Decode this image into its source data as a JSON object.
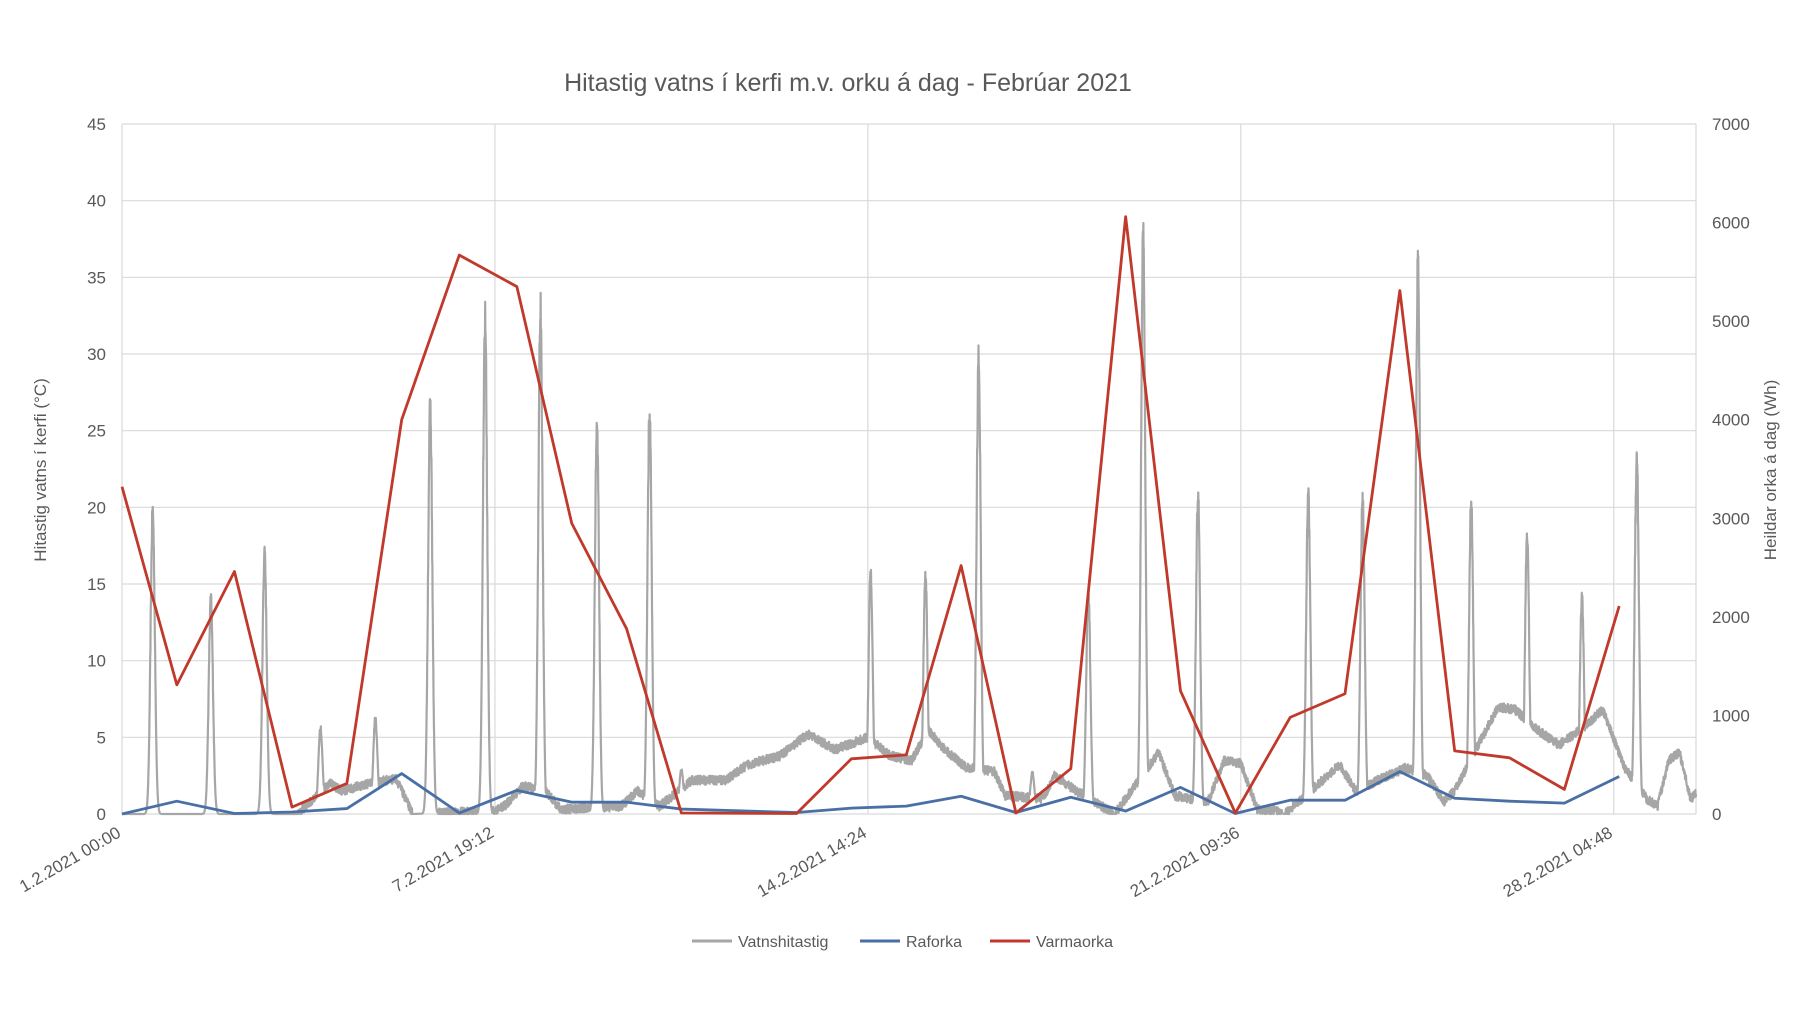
{
  "chart_data": {
    "type": "line",
    "title": "Hitastig vatns í kerfi m.v. orku á dag - Febrúar 2021",
    "ylabel": "Hitastig vatns í kerfi (°C)",
    "y2label": "Heildar orka á dag (Wh)",
    "ylim": [
      0,
      45
    ],
    "y2lim": [
      0,
      7000
    ],
    "yticks": [
      "0",
      "5",
      "10",
      "15",
      "20",
      "25",
      "30",
      "35",
      "40",
      "45"
    ],
    "y2ticks": [
      "0",
      "1000",
      "2000",
      "3000",
      "4000",
      "5000",
      "6000",
      "7000"
    ],
    "xlim": [
      0,
      28.7
    ],
    "xticks": [
      {
        "x": 0,
        "label": "1.2.2021 00:00"
      },
      {
        "x": 6.8,
        "label": "7.2.2021 19:12"
      },
      {
        "x": 13.6,
        "label": "14.2.2021 14:24"
      },
      {
        "x": 20.4,
        "label": "21.2.2021 09:36"
      },
      {
        "x": 27.2,
        "label": "28.2.2021 04:48"
      }
    ],
    "grid": true,
    "legend": "bottom",
    "series": [
      {
        "name": "Vatnshitastig",
        "axis": "left",
        "color": "#a6a6a6",
        "peaks": [
          [
            0.56,
            20.5
          ],
          [
            1.62,
            14.5
          ],
          [
            2.6,
            17.8
          ],
          [
            3.62,
            5.8
          ],
          [
            4.62,
            6.5
          ],
          [
            5.62,
            27.5
          ],
          [
            6.62,
            33.5
          ],
          [
            7.63,
            34.2
          ],
          [
            8.66,
            26.5
          ],
          [
            9.62,
            27.3
          ],
          [
            10.2,
            3.0
          ],
          [
            13.65,
            16.5
          ],
          [
            14.65,
            16.3
          ],
          [
            15.62,
            30.8
          ],
          [
            16.6,
            2.8
          ],
          [
            17.62,
            15.0
          ],
          [
            18.62,
            39.0
          ],
          [
            19.62,
            21.5
          ],
          [
            21.63,
            21.5
          ],
          [
            22.62,
            21.3
          ],
          [
            23.63,
            37.4
          ],
          [
            24.6,
            21.0
          ],
          [
            25.62,
            19.0
          ],
          [
            26.62,
            14.7
          ],
          [
            27.62,
            24.3
          ]
        ],
        "baseline": [
          [
            0,
            0
          ],
          [
            1.0,
            0
          ],
          [
            3.2,
            0
          ],
          [
            3.8,
            2.0
          ],
          [
            4.0,
            1.5
          ],
          [
            4.5,
            2.0
          ],
          [
            5.0,
            2.3
          ],
          [
            5.3,
            0
          ],
          [
            6.8,
            0.2
          ],
          [
            7.0,
            0.6
          ],
          [
            7.3,
            1.8
          ],
          [
            7.7,
            1.6
          ],
          [
            8.0,
            0.3
          ],
          [
            9.1,
            0.5
          ],
          [
            9.4,
            1.5
          ],
          [
            9.8,
            0.5
          ],
          [
            10.4,
            2.2
          ],
          [
            11.0,
            2.2
          ],
          [
            11.4,
            3.2
          ],
          [
            12.0,
            3.8
          ],
          [
            12.5,
            5.2
          ],
          [
            13.0,
            4.2
          ],
          [
            13.6,
            5.0
          ],
          [
            14.0,
            3.8
          ],
          [
            14.4,
            3.5
          ],
          [
            14.7,
            5.5
          ],
          [
            15.0,
            4.2
          ],
          [
            15.4,
            3.0
          ],
          [
            15.9,
            2.8
          ],
          [
            16.1,
            1.2
          ],
          [
            16.8,
            1.0
          ],
          [
            17.0,
            2.5
          ],
          [
            17.4,
            1.5
          ],
          [
            18.1,
            0
          ],
          [
            18.9,
            4.0
          ],
          [
            19.2,
            1.2
          ],
          [
            19.8,
            0.8
          ],
          [
            20.1,
            3.5
          ],
          [
            20.4,
            3.3
          ],
          [
            20.7,
            0.3
          ],
          [
            21.0,
            0.2
          ],
          [
            21.2,
            0
          ],
          [
            22.2,
            3.2
          ],
          [
            22.5,
            1.5
          ],
          [
            22.9,
            2.2
          ],
          [
            23.4,
            3.0
          ],
          [
            23.8,
            2.5
          ],
          [
            24.1,
            0.8
          ],
          [
            24.3,
            1.5
          ],
          [
            24.8,
            5.0
          ],
          [
            25.1,
            7.0
          ],
          [
            25.4,
            6.8
          ],
          [
            25.8,
            5.5
          ],
          [
            26.2,
            4.5
          ],
          [
            26.6,
            5.5
          ],
          [
            27.0,
            6.8
          ],
          [
            27.4,
            3.0
          ],
          [
            27.8,
            1.0
          ],
          [
            28.0,
            0.5
          ],
          [
            28.2,
            3.5
          ],
          [
            28.4,
            4.0
          ],
          [
            28.6,
            1.0
          ],
          [
            28.7,
            1.3
          ]
        ]
      },
      {
        "name": "Raforka",
        "axis": "right",
        "color": "#4a6fa5",
        "points": [
          [
            0,
            0
          ],
          [
            1.0,
            130
          ],
          [
            2.05,
            5
          ],
          [
            3.1,
            20
          ],
          [
            4.1,
            55
          ],
          [
            5.1,
            410
          ],
          [
            6.15,
            10
          ],
          [
            7.2,
            240
          ],
          [
            8.2,
            120
          ],
          [
            9.2,
            120
          ],
          [
            10.2,
            50
          ],
          [
            12.3,
            15
          ],
          [
            13.3,
            60
          ],
          [
            14.3,
            80
          ],
          [
            15.3,
            180
          ],
          [
            16.3,
            15
          ],
          [
            17.3,
            170
          ],
          [
            18.3,
            30
          ],
          [
            19.3,
            270
          ],
          [
            20.3,
            5
          ],
          [
            21.3,
            140
          ],
          [
            22.3,
            140
          ],
          [
            23.3,
            430
          ],
          [
            24.3,
            160
          ],
          [
            25.3,
            130
          ],
          [
            26.3,
            110
          ],
          [
            27.3,
            380
          ]
        ]
      },
      {
        "name": "Varmaorka",
        "axis": "right",
        "color": "#c0392b",
        "points": [
          [
            0,
            3320
          ],
          [
            1.0,
            1310
          ],
          [
            2.05,
            2460
          ],
          [
            3.1,
            70
          ],
          [
            4.1,
            310
          ],
          [
            5.1,
            4000
          ],
          [
            6.15,
            5670
          ],
          [
            7.2,
            5350
          ],
          [
            8.2,
            2950
          ],
          [
            9.2,
            1880
          ],
          [
            10.2,
            10
          ],
          [
            12.3,
            5
          ],
          [
            13.3,
            560
          ],
          [
            14.3,
            600
          ],
          [
            15.3,
            2520
          ],
          [
            16.3,
            10
          ],
          [
            17.3,
            460
          ],
          [
            18.3,
            6060
          ],
          [
            19.3,
            1250
          ],
          [
            20.3,
            10
          ],
          [
            21.3,
            980
          ],
          [
            22.3,
            1220
          ],
          [
            23.3,
            5310
          ],
          [
            24.3,
            640
          ],
          [
            25.3,
            570
          ],
          [
            26.3,
            250
          ],
          [
            27.3,
            2110
          ]
        ]
      }
    ]
  }
}
